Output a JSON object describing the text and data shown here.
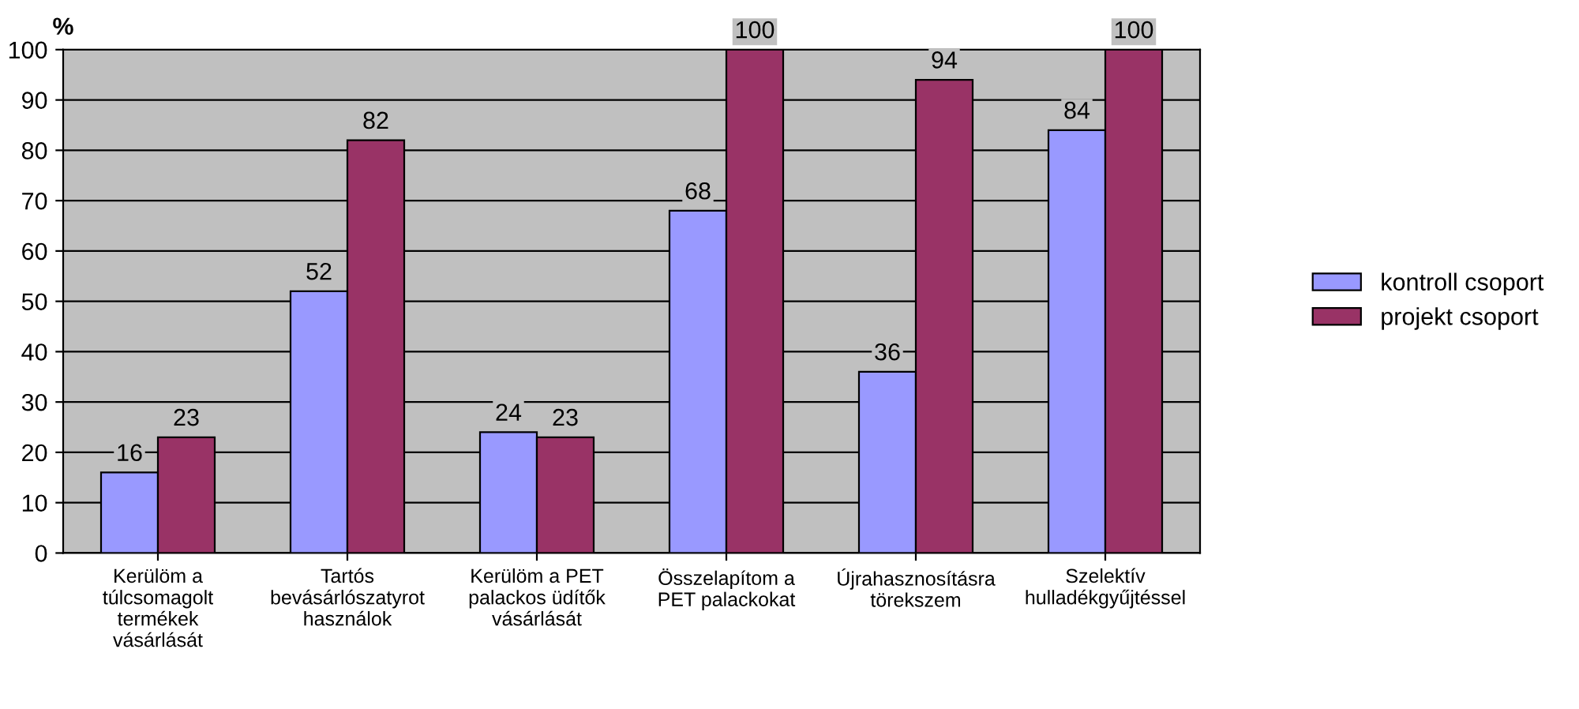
{
  "chart_data": {
    "type": "bar",
    "ylabel": "%",
    "categories": [
      "Kerülöm a\ntúlcsomagolt\ntermékek\nvásárlását",
      "Tartós\nbevásárlószatyrot\nhasználok",
      "Kerülöm a PET\npalackos üdítők\nvásárlását",
      "Összelapítom a\nPET palackokat",
      "Újrahasznosításra\ntörekszem",
      "Szelektív\nhulladékgyűjtéssel"
    ],
    "series": [
      {
        "name": "kontroll csoport",
        "color": "#9999ff",
        "values": [
          16,
          52,
          24,
          68,
          36,
          84
        ]
      },
      {
        "name": "projekt csoport",
        "color": "#993366",
        "values": [
          23,
          82,
          23,
          100,
          94,
          100
        ]
      }
    ],
    "ylim": [
      0,
      100
    ],
    "yticks": [
      0,
      10,
      20,
      30,
      40,
      50,
      60,
      70,
      80,
      90,
      100
    ],
    "grid": "y",
    "legend": "right",
    "data_labels": true
  }
}
